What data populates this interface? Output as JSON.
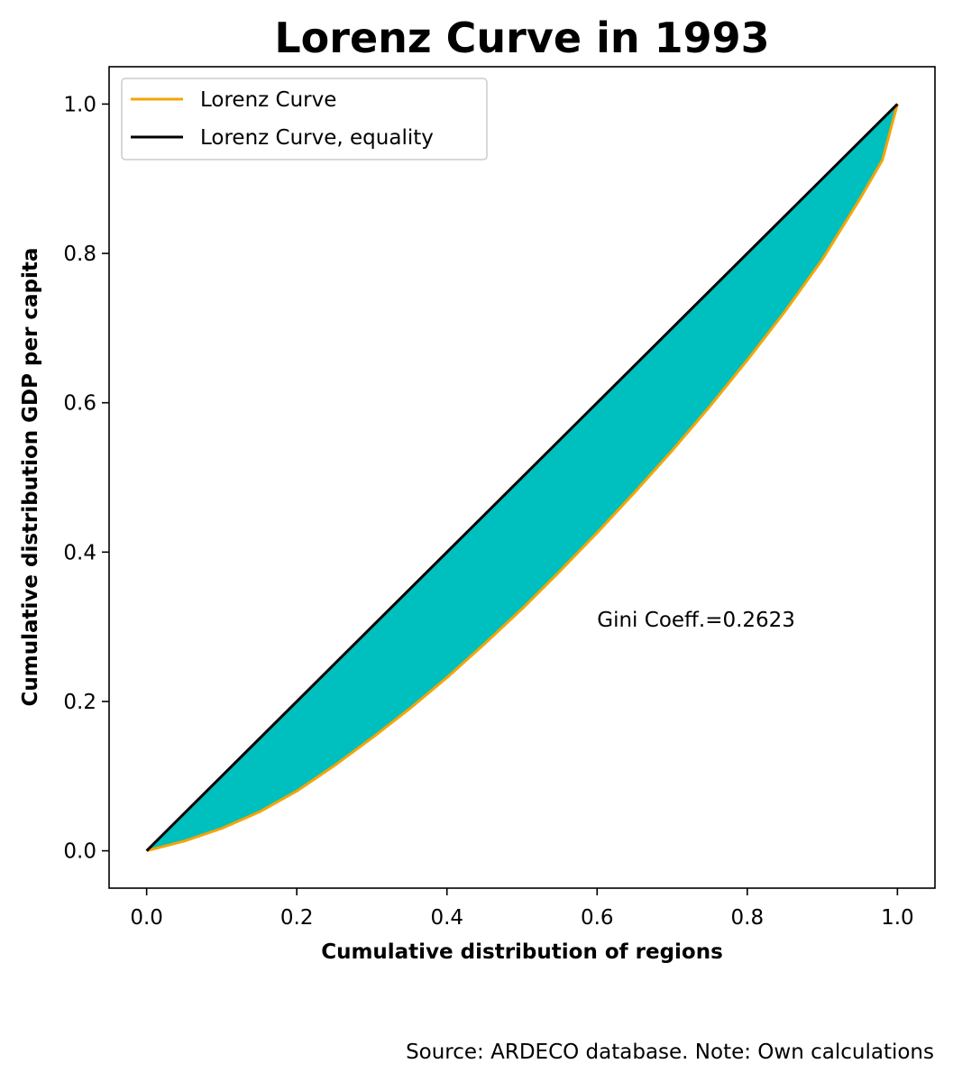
{
  "chart_data": {
    "type": "line",
    "title": "Lorenz Curve in 1993",
    "xlabel": "Cumulative distribution of regions",
    "ylabel": "Cumulative distribution GDP per capita",
    "xlim": [
      -0.05,
      1.05
    ],
    "ylim": [
      -0.05,
      1.05
    ],
    "x_ticks": [
      "0.0",
      "0.2",
      "0.4",
      "0.6",
      "0.8",
      "1.0"
    ],
    "y_ticks": [
      "0.0",
      "0.2",
      "0.4",
      "0.6",
      "0.8",
      "1.0"
    ],
    "grid": false,
    "legend_position": "top-left",
    "fill_between_color": "#00bfbf",
    "series": [
      {
        "name": "Lorenz Curve",
        "color": "#f5a400",
        "x": [
          0.0,
          0.05,
          0.1,
          0.15,
          0.2,
          0.25,
          0.3,
          0.35,
          0.4,
          0.45,
          0.5,
          0.55,
          0.6,
          0.65,
          0.7,
          0.75,
          0.8,
          0.85,
          0.9,
          0.95,
          0.98,
          1.0
        ],
        "y": [
          0.0,
          0.013,
          0.03,
          0.052,
          0.08,
          0.114,
          0.151,
          0.19,
          0.232,
          0.277,
          0.324,
          0.374,
          0.426,
          0.48,
          0.536,
          0.595,
          0.657,
          0.722,
          0.792,
          0.873,
          0.925,
          1.0
        ]
      },
      {
        "name": "Lorenz Curve, equality",
        "color": "#000000",
        "x": [
          0.0,
          1.0
        ],
        "y": [
          0.0,
          1.0
        ]
      }
    ],
    "annotations": [
      {
        "text": "Gini Coeff.=0.2623",
        "x": 0.6,
        "y": 0.3
      }
    ]
  },
  "footer": {
    "source_note": "Source: ARDECO database. Note: Own calculations"
  }
}
